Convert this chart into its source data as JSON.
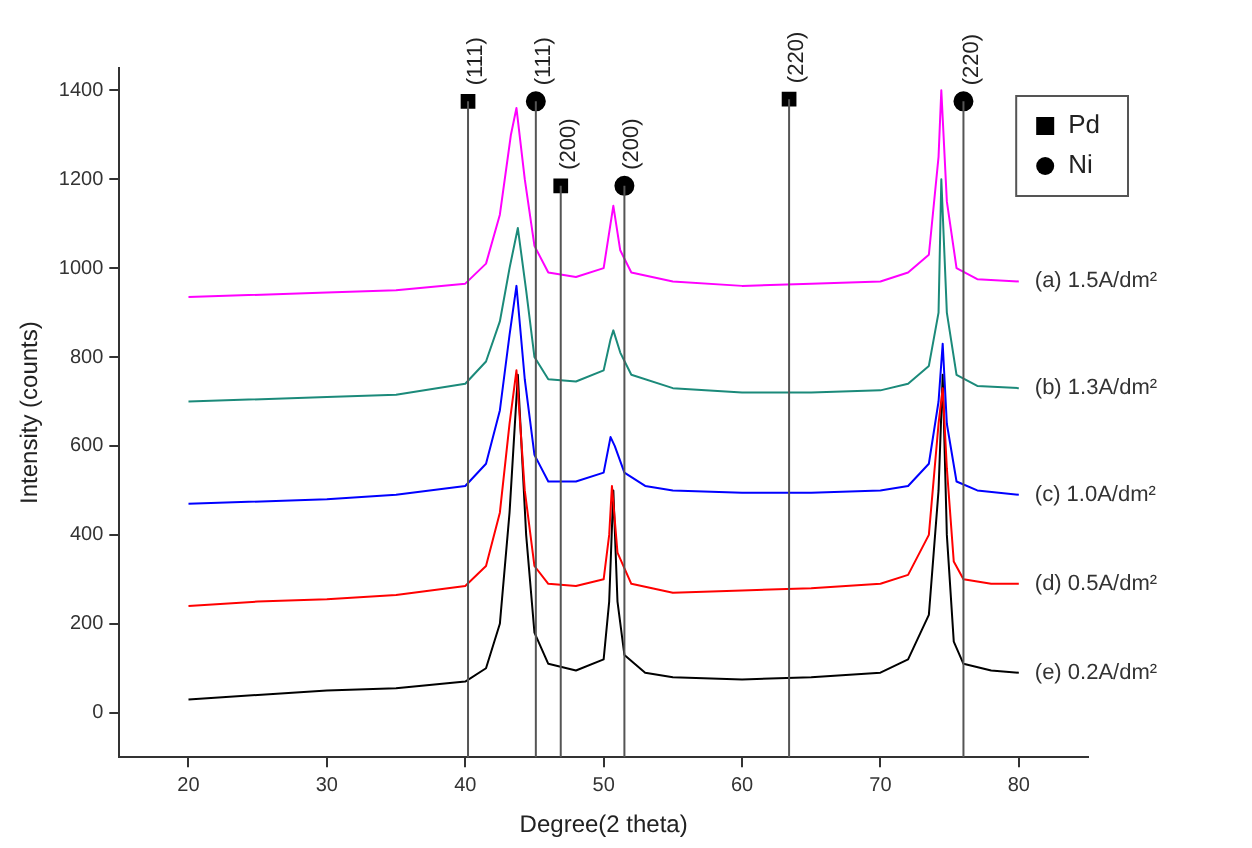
{
  "chart_data": {
    "type": "line",
    "xlabel": "Degree(2 theta)",
    "ylabel": "Intensity (counts)",
    "xlim": [
      15,
      85
    ],
    "xticks": [
      20,
      30,
      40,
      50,
      60,
      70,
      80
    ],
    "ylim": [
      -100,
      1450
    ],
    "yticks": [
      0,
      200,
      400,
      600,
      800,
      1000,
      1200,
      1400
    ],
    "grid": false,
    "legend": "top right",
    "line_style": "solid",
    "series": [
      {
        "name": "(a) 1.5A/dm²",
        "color": "#ff00ff",
        "marker": "none",
        "x": [
          20,
          30,
          35,
          40,
          41.5,
          42.5,
          43.3,
          43.7,
          44.3,
          45,
          46,
          48,
          50,
          50.5,
          50.7,
          51.2,
          52,
          55,
          60,
          65,
          70,
          72,
          73.5,
          74.2,
          74.4,
          74.8,
          75.5,
          77,
          80
        ],
        "values": [
          935,
          945,
          950,
          965,
          1010,
          1120,
          1300,
          1360,
          1200,
          1050,
          990,
          980,
          1000,
          1100,
          1140,
          1040,
          990,
          970,
          960,
          965,
          970,
          990,
          1030,
          1250,
          1400,
          1150,
          1000,
          975,
          970
        ]
      },
      {
        "name": "(b) 1.3A/dm²",
        "color": "#1b8a7a",
        "marker": "none",
        "x": [
          20,
          30,
          35,
          40,
          41.5,
          42.5,
          43.2,
          43.8,
          44.4,
          45,
          46,
          48,
          50,
          50.5,
          50.7,
          51.2,
          52,
          55,
          60,
          65,
          70,
          72,
          73.5,
          74.2,
          74.4,
          74.8,
          75.5,
          77,
          80
        ],
        "values": [
          700,
          710,
          715,
          740,
          790,
          880,
          1000,
          1090,
          950,
          800,
          750,
          745,
          770,
          840,
          860,
          810,
          760,
          730,
          720,
          720,
          725,
          740,
          780,
          900,
          1200,
          900,
          760,
          735,
          730
        ]
      },
      {
        "name": "(c) 1.0A/dm²",
        "color": "#0000ff",
        "marker": "none",
        "x": [
          20,
          30,
          35,
          40,
          41.5,
          42.5,
          43.2,
          43.7,
          44.3,
          45,
          46,
          48,
          50,
          50.5,
          50.8,
          51.5,
          53,
          55,
          60,
          65,
          70,
          72,
          73.5,
          74.2,
          74.5,
          74.8,
          75.5,
          77,
          80
        ],
        "values": [
          470,
          480,
          490,
          510,
          560,
          680,
          850,
          960,
          750,
          580,
          520,
          520,
          540,
          620,
          600,
          540,
          510,
          500,
          495,
          495,
          500,
          510,
          560,
          700,
          830,
          650,
          520,
          500,
          490
        ]
      },
      {
        "name": "(d) 0.5A/dm²",
        "color": "#ff0000",
        "marker": "none",
        "x": [
          20,
          25,
          30,
          35,
          40,
          41.5,
          42.5,
          43.2,
          43.7,
          44.3,
          45,
          46,
          48,
          50,
          50.4,
          50.6,
          51,
          52,
          55,
          60,
          65,
          70,
          72,
          73.5,
          74.2,
          74.5,
          74.8,
          75.3,
          76,
          78,
          80
        ],
        "values": [
          240,
          250,
          255,
          265,
          285,
          330,
          450,
          650,
          770,
          500,
          330,
          290,
          285,
          300,
          400,
          510,
          360,
          290,
          270,
          275,
          280,
          290,
          310,
          400,
          650,
          730,
          550,
          340,
          300,
          290,
          290
        ]
      },
      {
        "name": "(e) 0.2A/dm²",
        "color": "#000000",
        "marker": "none",
        "x": [
          20,
          25,
          30,
          35,
          40,
          41.5,
          42.5,
          43.2,
          43.8,
          44.4,
          45,
          46,
          48,
          50,
          50.4,
          50.7,
          51,
          51.5,
          53,
          55,
          60,
          65,
          70,
          72,
          73.5,
          74.2,
          74.5,
          74.8,
          75.3,
          76,
          78,
          80
        ],
        "values": [
          30,
          40,
          50,
          55,
          70,
          100,
          200,
          450,
          760,
          400,
          180,
          110,
          95,
          120,
          250,
          500,
          250,
          130,
          90,
          80,
          75,
          80,
          90,
          120,
          220,
          500,
          760,
          400,
          160,
          110,
          95,
          90
        ]
      },
      {
        "name": "Pd",
        "type": "scatter",
        "color": "#000000",
        "marker": "square",
        "x": [
          40.2,
          46.9,
          63.4
        ],
        "values": [
          1375,
          1185,
          1380
        ]
      },
      {
        "name": "Ni",
        "type": "scatter",
        "color": "#000000",
        "marker": "circle",
        "x": [
          45.1,
          51.5,
          76.0
        ],
        "values": [
          1375,
          1185,
          1375
        ]
      }
    ],
    "ref_lines": [
      {
        "axis": "x",
        "value": 40.2,
        "color": "#555555"
      },
      {
        "axis": "x",
        "value": 45.1,
        "color": "#555555"
      },
      {
        "axis": "x",
        "value": 46.9,
        "color": "#555555"
      },
      {
        "axis": "x",
        "value": 51.5,
        "color": "#555555"
      },
      {
        "axis": "x",
        "value": 63.4,
        "color": "#555555"
      },
      {
        "axis": "x",
        "value": 76.0,
        "color": "#555555"
      }
    ],
    "annotations": [
      {
        "text": "(111)",
        "x": 40.2,
        "y": 1375
      },
      {
        "text": "(111)",
        "x": 45.1,
        "y": 1375
      },
      {
        "text": "(200)",
        "x": 46.9,
        "y": 1185
      },
      {
        "text": "(200)",
        "x": 51.5,
        "y": 1185
      },
      {
        "text": "(220)",
        "x": 63.4,
        "y": 1380
      },
      {
        "text": "(220)",
        "x": 76.0,
        "y": 1375
      }
    ]
  }
}
